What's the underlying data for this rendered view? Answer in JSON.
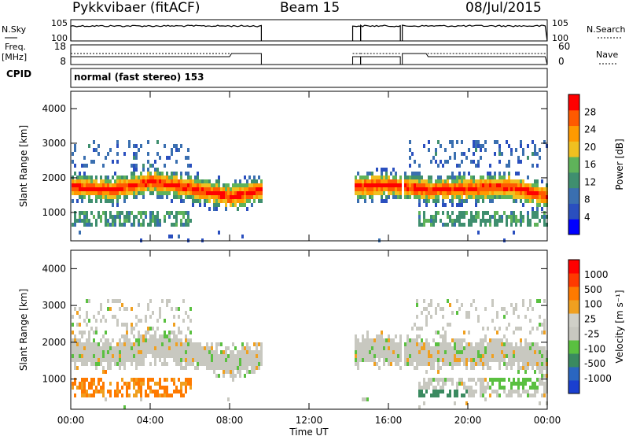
{
  "header": {
    "station": "Pykkvibaer (fitACF)",
    "beam": "Beam 15",
    "date": "08/Jul/2015"
  },
  "panel_labels": {
    "nsky": "N.Sky",
    "nsearch": "N.Search",
    "freq": "Freq.",
    "freq_unit": "[MHz]",
    "nave": "Nave",
    "cpid": "CPID",
    "mode": "normal (fast stereo) 153",
    "noise_left_ticks": [
      "10^5",
      "10^0"
    ],
    "noise_right_ticks": [
      "10^5",
      "10^0"
    ],
    "freq_left_ticks": [
      "18",
      "8"
    ],
    "nave_right_ticks": [
      "60",
      "0"
    ]
  },
  "colors": {
    "power_scale": [
      "#0000ff",
      "#2a4fbf",
      "#3a6fb0",
      "#3f8f6f",
      "#5fb35a",
      "#f0c020",
      "#ff9a00",
      "#ff5a00",
      "#ff0000"
    ],
    "velocity_scale": [
      "#1a3fd0",
      "#2a66c0",
      "#3a8a60",
      "#5ac040",
      "#c8c8c0",
      "#d0d0c8",
      "#f0a020",
      "#ff7a00",
      "#ff3a00",
      "#ff0000"
    ]
  },
  "chart_data": [
    {
      "type": "line",
      "name": "noise",
      "x_ticks": [
        "00:00",
        "04:00",
        "08:00",
        "12:00",
        "16:00",
        "20:00",
        "00:00"
      ],
      "segments_hours": [
        [
          0.0,
          9.6
        ],
        [
          14.2,
          14.6
        ],
        [
          14.6,
          16.6
        ],
        [
          16.7,
          24.0
        ]
      ],
      "level": "high"
    },
    {
      "type": "line",
      "name": "frequency_nave",
      "segments_hours": [
        [
          0.0,
          9.6
        ],
        [
          14.2,
          14.6
        ],
        [
          14.6,
          16.6
        ],
        [
          16.7,
          24.0
        ]
      ],
      "freq_step_hours": [
        8.0,
        18.0
      ]
    },
    {
      "type": "heatmap",
      "title": "Power",
      "ylabel": "Slant Range [km]",
      "colorbar_label": "Power [dB]",
      "colorbar_ticks": [
        "28",
        "24",
        "20",
        "16",
        "12",
        "8",
        "4"
      ],
      "y_ticks": [
        "4000",
        "3000",
        "2000",
        "1000"
      ],
      "ylim": [
        180,
        4500
      ],
      "xlim": [
        0,
        24
      ],
      "x_ticks": [
        "00:00",
        "04:00",
        "08:00",
        "12:00",
        "16:00",
        "20:00",
        "00:00"
      ],
      "gap_hours": [
        9.6,
        14.2
      ],
      "main_band_km": [
        1300,
        2300
      ],
      "band_center_trace": [
        [
          0,
          1800
        ],
        [
          2,
          1700
        ],
        [
          4,
          1950
        ],
        [
          6,
          1750
        ],
        [
          8,
          1500
        ],
        [
          9.6,
          1700
        ],
        [
          14.2,
          1800
        ],
        [
          16,
          1850
        ],
        [
          18,
          1700
        ],
        [
          20,
          1750
        ],
        [
          22,
          1800
        ],
        [
          24,
          1500
        ]
      ]
    },
    {
      "type": "heatmap",
      "title": "Velocity",
      "ylabel": "Slant Range [km]",
      "xlabel": "Time UT",
      "colorbar_label": "Velocity [m s⁻¹]",
      "colorbar_ticks": [
        "1000",
        "500",
        "100",
        "25",
        "-25",
        "-100",
        "-500",
        "-1000"
      ],
      "y_ticks": [
        "4000",
        "3000",
        "2000",
        "1000"
      ],
      "ylim": [
        180,
        4500
      ],
      "xlim": [
        0,
        24
      ],
      "x_ticks": [
        "00:00",
        "04:00",
        "08:00",
        "12:00",
        "16:00",
        "20:00",
        "00:00"
      ]
    }
  ]
}
